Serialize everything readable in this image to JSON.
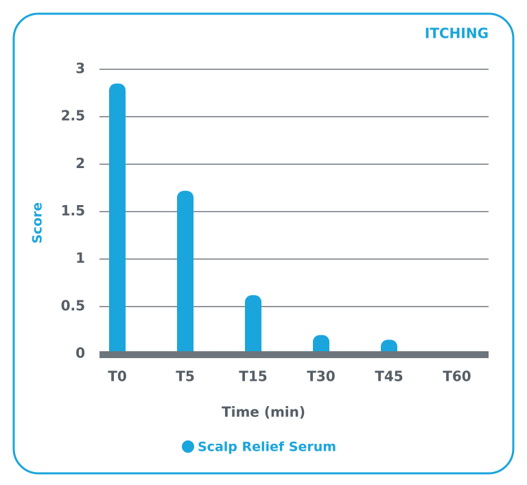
{
  "chart_data": {
    "type": "bar",
    "title": "ITCHING",
    "x_label": "Time (min)",
    "y_label": "Score",
    "categories": [
      "T0",
      "T5",
      "T15",
      "T30",
      "T45",
      "T60"
    ],
    "series": [
      {
        "name": "Scalp Relief Serum",
        "color": "#1aa5dc",
        "values": [
          2.85,
          1.72,
          0.62,
          0.2,
          0.15,
          0
        ]
      }
    ],
    "ylim": [
      0,
      3
    ],
    "yticks": [
      0,
      0.5,
      1,
      1.5,
      2,
      2.5,
      3
    ],
    "grid": true,
    "legend": "bottom"
  }
}
